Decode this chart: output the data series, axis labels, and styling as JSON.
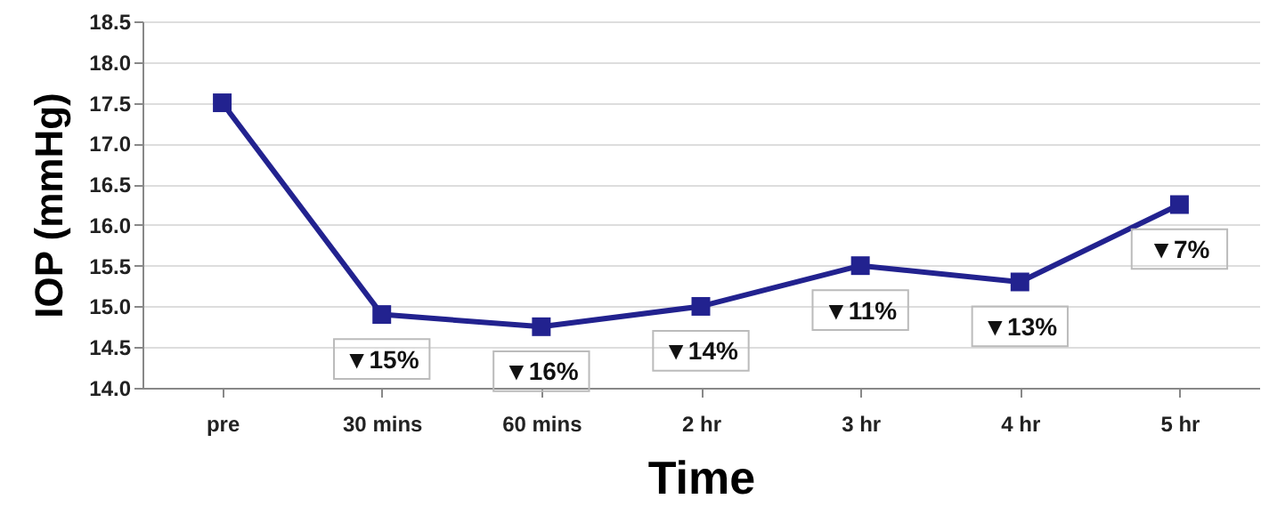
{
  "chart_data": {
    "type": "line",
    "xlabel": "Time",
    "ylabel": "IOP (mmHg)",
    "categories": [
      "pre",
      "30 mins",
      "60 mins",
      "2 hr",
      "3 hr",
      "4 hr",
      "5 hr"
    ],
    "series": [
      {
        "color": "#22228f",
        "values": [
          17.5,
          14.9,
          14.75,
          15.0,
          15.5,
          15.3,
          16.25
        ]
      }
    ],
    "ylim": [
      14.0,
      18.5
    ],
    "yticks": [
      {
        "value": 14,
        "label": "14.0"
      },
      {
        "value": 14.5,
        "label": "14.5"
      },
      {
        "value": 15,
        "label": "15.0"
      },
      {
        "value": 15.5,
        "label": "15.5"
      },
      {
        "value": 16,
        "label": "16.0"
      },
      {
        "value": 16.5,
        "label": "16.5"
      },
      {
        "value": 17,
        "label": "17.0"
      },
      {
        "value": 17.5,
        "label": "17.5"
      },
      {
        "value": 18,
        "label": "18.0"
      },
      {
        "value": 18.5,
        "label": "18.5"
      }
    ],
    "grid": "y",
    "marker": "square",
    "line_style": "solid",
    "annotations": [
      {
        "text": "▼15%",
        "x": "30 mins",
        "y": 14.9
      },
      {
        "text": "▼16%",
        "x": "60 mins",
        "y": 14.75
      },
      {
        "text": "▼14%",
        "x": "2 hr",
        "y": 15.0
      },
      {
        "text": "▼11%",
        "x": "3 hr",
        "y": 15.5
      },
      {
        "text": "▼13%",
        "x": "4 hr",
        "y": 15.3
      },
      {
        "text": "▼7%",
        "x": "5 hr",
        "y": 16.25
      }
    ]
  }
}
